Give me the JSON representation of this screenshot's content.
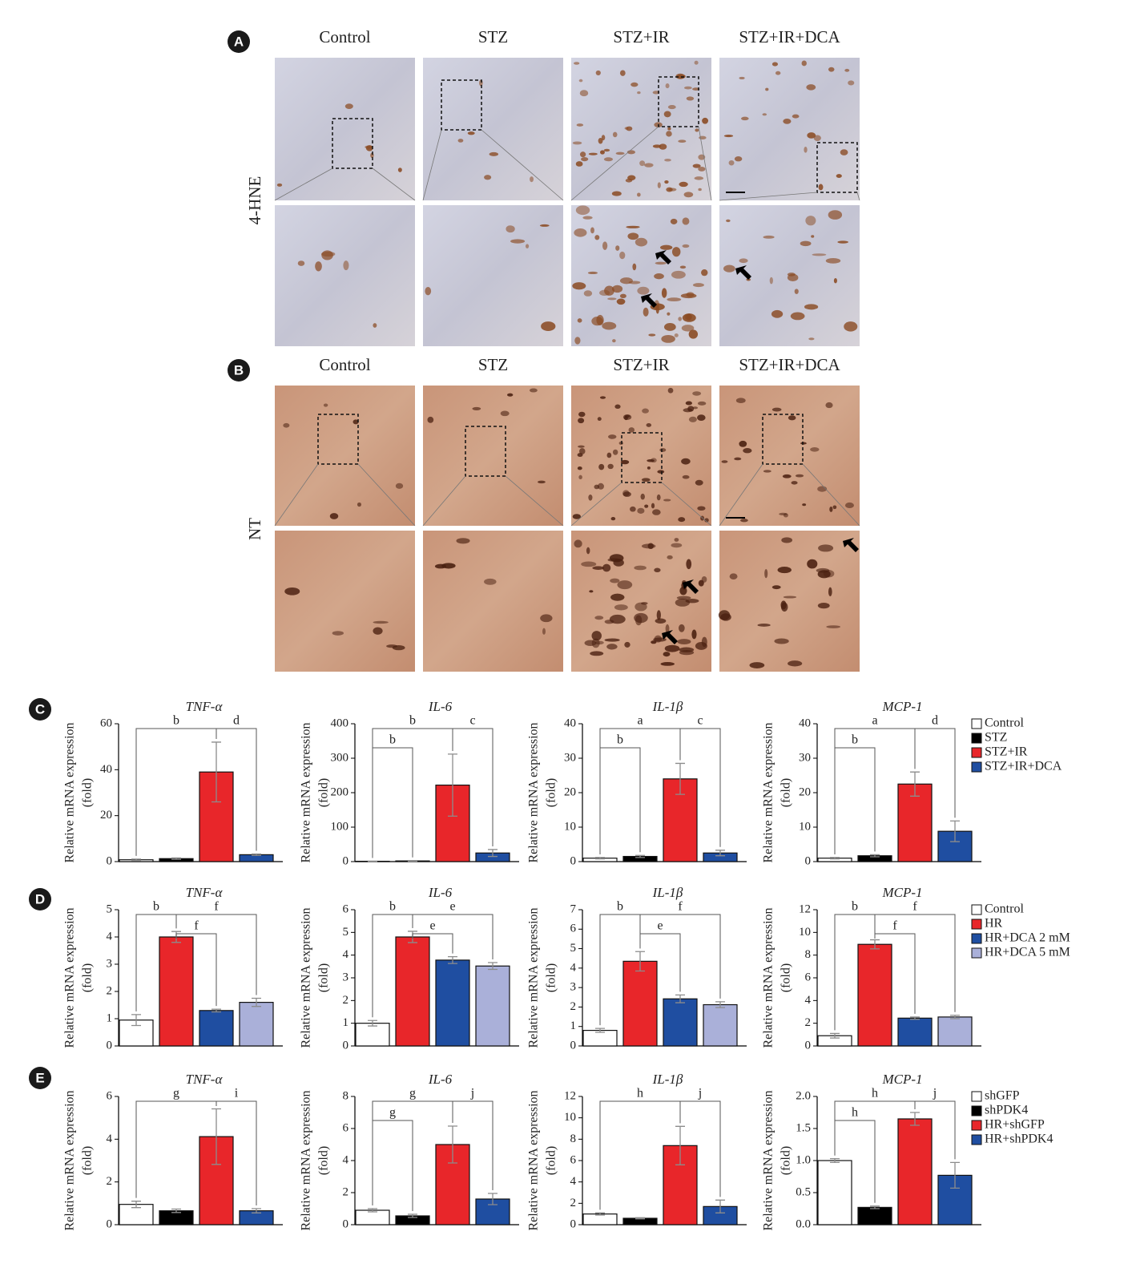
{
  "figure": {
    "panels": [
      {
        "letter": "A",
        "stain": "4-HNE",
        "columns": [
          "Control",
          "STZ",
          "STZ+IR",
          "STZ+IR+DCA"
        ]
      },
      {
        "letter": "B",
        "stain": "NT",
        "columns": [
          "Control",
          "STZ",
          "STZ+IR",
          "STZ+IR+DCA"
        ]
      },
      {
        "letter": "C"
      },
      {
        "letter": "D"
      },
      {
        "letter": "E"
      }
    ]
  },
  "chart_data": [
    {
      "type": "bar",
      "title": "TNF-α",
      "ylabel": [
        "Relative mRNA expression",
        "(fold)"
      ],
      "categories": [
        null,
        null,
        null,
        null
      ],
      "values": [
        0.8,
        1.3,
        39,
        3
      ],
      "errors": [
        0.3,
        0.3,
        13,
        0.3
      ],
      "colors": [
        "#ffffff",
        "#000000",
        "#e8262a",
        "#1f4ea1"
      ],
      "ylim": [
        0,
        60
      ],
      "yticks": [
        0,
        20,
        40,
        60
      ],
      "brackets": [
        {
          "label": "b",
          "from": 0,
          "to": 2
        },
        {
          "label": "d",
          "from": 2,
          "to": 3
        }
      ]
    },
    {
      "type": "bar",
      "title": "IL-6",
      "ylabel": [
        "Relative mRNA expression",
        "(fold)"
      ],
      "categories": [
        null,
        null,
        null,
        null
      ],
      "values": [
        1,
        2,
        222,
        25
      ],
      "errors": [
        0.5,
        1,
        90,
        10
      ],
      "colors": [
        "#ffffff",
        "#000000",
        "#e8262a",
        "#1f4ea1"
      ],
      "ylim": [
        0,
        400
      ],
      "yticks": [
        0,
        100,
        200,
        300,
        400
      ],
      "brackets": [
        {
          "label": "b",
          "from": 0,
          "to": 2
        },
        {
          "label": "b",
          "from": 0,
          "to": 1
        },
        {
          "label": "c",
          "from": 2,
          "to": 3
        }
      ]
    },
    {
      "type": "bar",
      "title": "IL-1β",
      "ylabel": [
        "Relative mRNA expression",
        "(fold)"
      ],
      "categories": [
        null,
        null,
        null,
        null
      ],
      "values": [
        1,
        1.5,
        24,
        2.5
      ],
      "errors": [
        0.2,
        0.3,
        4.5,
        0.8
      ],
      "colors": [
        "#ffffff",
        "#000000",
        "#e8262a",
        "#1f4ea1"
      ],
      "ylim": [
        0,
        40
      ],
      "yticks": [
        0,
        10,
        20,
        30,
        40
      ],
      "brackets": [
        {
          "label": "a",
          "from": 0,
          "to": 2
        },
        {
          "label": "b",
          "from": 0,
          "to": 1
        },
        {
          "label": "c",
          "from": 2,
          "to": 3
        }
      ]
    },
    {
      "type": "bar",
      "title": "MCP-1",
      "ylabel": [
        "Relative mRNA expression",
        "(fold)"
      ],
      "categories": [
        null,
        null,
        null,
        null
      ],
      "values": [
        1,
        1.7,
        22.5,
        8.8
      ],
      "errors": [
        0.2,
        0.3,
        3.5,
        3
      ],
      "colors": [
        "#ffffff",
        "#000000",
        "#e8262a",
        "#1f4ea1"
      ],
      "ylim": [
        0,
        40
      ],
      "yticks": [
        0,
        10,
        20,
        30,
        40
      ],
      "brackets": [
        {
          "label": "a",
          "from": 0,
          "to": 2
        },
        {
          "label": "b",
          "from": 0,
          "to": 1
        },
        {
          "label": "d",
          "from": 2,
          "to": 3
        }
      ],
      "legend": [
        {
          "name": "Control",
          "color": "#ffffff"
        },
        {
          "name": "STZ",
          "color": "#000000"
        },
        {
          "name": "STZ+IR",
          "color": "#e8262a"
        },
        {
          "name": "STZ+IR+DCA",
          "color": "#1f4ea1"
        }
      ]
    },
    {
      "type": "bar",
      "title": "TNF-α",
      "ylabel": [
        "Relative mRNA expression",
        "(fold)"
      ],
      "categories": [
        null,
        null,
        null,
        null
      ],
      "values": [
        0.95,
        4,
        1.3,
        1.6
      ],
      "errors": [
        0.2,
        0.2,
        0.05,
        0.15
      ],
      "colors": [
        "#ffffff",
        "#e8262a",
        "#1f4ea1",
        "#aab0d9"
      ],
      "ylim": [
        0,
        5
      ],
      "yticks": [
        0,
        1,
        2,
        3,
        4,
        5
      ],
      "brackets": [
        {
          "label": "b",
          "from": 0,
          "to": 1
        },
        {
          "label": "f",
          "from": 1,
          "to": 2
        },
        {
          "label": "f",
          "from": 1,
          "to": 3
        }
      ]
    },
    {
      "type": "bar",
      "title": "IL-6",
      "ylabel": [
        "Relative mRNA expression",
        "(fold)"
      ],
      "categories": [
        null,
        null,
        null,
        null
      ],
      "values": [
        1,
        4.8,
        3.78,
        3.52
      ],
      "errors": [
        0.12,
        0.25,
        0.15,
        0.15
      ],
      "colors": [
        "#ffffff",
        "#e8262a",
        "#1f4ea1",
        "#aab0d9"
      ],
      "ylim": [
        0,
        6
      ],
      "yticks": [
        0,
        1,
        2,
        3,
        4,
        5,
        6
      ],
      "brackets": [
        {
          "label": "b",
          "from": 0,
          "to": 1
        },
        {
          "label": "e",
          "from": 1,
          "to": 2
        },
        {
          "label": "e",
          "from": 1,
          "to": 3
        }
      ]
    },
    {
      "type": "bar",
      "title": "IL-1β",
      "ylabel": [
        "Relative mRNA expression",
        "(fold)"
      ],
      "categories": [
        null,
        null,
        null,
        null
      ],
      "values": [
        0.8,
        4.35,
        2.42,
        2.12
      ],
      "errors": [
        0.1,
        0.5,
        0.2,
        0.15
      ],
      "colors": [
        "#ffffff",
        "#e8262a",
        "#1f4ea1",
        "#aab0d9"
      ],
      "ylim": [
        0,
        7
      ],
      "yticks": [
        0,
        1,
        2,
        3,
        4,
        5,
        6,
        7
      ],
      "brackets": [
        {
          "label": "b",
          "from": 0,
          "to": 1
        },
        {
          "label": "e",
          "from": 1,
          "to": 2
        },
        {
          "label": "f",
          "from": 1,
          "to": 3
        }
      ]
    },
    {
      "type": "bar",
      "title": "MCP-1",
      "ylabel": [
        "Relative mRNA expression",
        "(fold)"
      ],
      "categories": [
        null,
        null,
        null,
        null
      ],
      "values": [
        0.9,
        8.95,
        2.45,
        2.55
      ],
      "errors": [
        0.2,
        0.4,
        0.1,
        0.15
      ],
      "colors": [
        "#ffffff",
        "#e8262a",
        "#1f4ea1",
        "#aab0d9"
      ],
      "ylim": [
        0,
        12
      ],
      "yticks": [
        0,
        2,
        4,
        6,
        8,
        10,
        12
      ],
      "brackets": [
        {
          "label": "b",
          "from": 0,
          "to": 1
        },
        {
          "label": "f",
          "from": 1,
          "to": 2
        },
        {
          "label": "f",
          "from": 1,
          "to": 3
        }
      ],
      "legend": [
        {
          "name": "Control",
          "color": "#ffffff"
        },
        {
          "name": "HR",
          "color": "#e8262a"
        },
        {
          "name": "HR+DCA 2 mM",
          "color": "#1f4ea1"
        },
        {
          "name": "HR+DCA 5 mM",
          "color": "#aab0d9"
        }
      ]
    },
    {
      "type": "bar",
      "title": "TNF-α",
      "ylabel": [
        "Relative mRNA expression",
        "(fold)"
      ],
      "categories": [
        null,
        null,
        null,
        null
      ],
      "values": [
        0.95,
        0.65,
        4.12,
        0.65
      ],
      "errors": [
        0.15,
        0.08,
        1.3,
        0.1
      ],
      "colors": [
        "#ffffff",
        "#000000",
        "#e8262a",
        "#1f4ea1"
      ],
      "ylim": [
        0,
        6
      ],
      "yticks": [
        0,
        2,
        4,
        6
      ],
      "brackets": [
        {
          "label": "g",
          "from": 0,
          "to": 2
        },
        {
          "label": "i",
          "from": 2,
          "to": 3
        }
      ]
    },
    {
      "type": "bar",
      "title": "IL-6",
      "ylabel": [
        "Relative mRNA expression",
        "(fold)"
      ],
      "categories": [
        null,
        null,
        null,
        null
      ],
      "values": [
        0.9,
        0.55,
        5,
        1.6
      ],
      "errors": [
        0.1,
        0.1,
        1.15,
        0.35
      ],
      "colors": [
        "#ffffff",
        "#000000",
        "#e8262a",
        "#1f4ea1"
      ],
      "ylim": [
        0,
        8
      ],
      "yticks": [
        0,
        2,
        4,
        6,
        8
      ],
      "brackets": [
        {
          "label": "g",
          "from": 0,
          "to": 2
        },
        {
          "label": "g",
          "from": 0,
          "to": 1
        },
        {
          "label": "j",
          "from": 2,
          "to": 3
        }
      ]
    },
    {
      "type": "bar",
      "title": "IL-1β",
      "ylabel": [
        "Relative mRNA expression",
        "(fold)"
      ],
      "categories": [
        null,
        null,
        null,
        null
      ],
      "values": [
        1,
        0.6,
        7.4,
        1.7
      ],
      "errors": [
        0.1,
        0.05,
        1.8,
        0.6
      ],
      "colors": [
        "#ffffff",
        "#000000",
        "#e8262a",
        "#1f4ea1"
      ],
      "ylim": [
        0,
        12
      ],
      "yticks": [
        0,
        2,
        4,
        6,
        8,
        10,
        12
      ],
      "brackets": [
        {
          "label": "h",
          "from": 0,
          "to": 2
        },
        {
          "label": "j",
          "from": 2,
          "to": 3
        }
      ]
    },
    {
      "type": "bar",
      "title": "MCP-1",
      "ylabel": [
        "Relative mRNA expression",
        "(fold)"
      ],
      "categories": [
        null,
        null,
        null,
        null
      ],
      "values": [
        1,
        0.27,
        1.65,
        0.77
      ],
      "errors": [
        0.03,
        0.02,
        0.1,
        0.2
      ],
      "colors": [
        "#ffffff",
        "#000000",
        "#e8262a",
        "#1f4ea1"
      ],
      "ylim": [
        0,
        2
      ],
      "yticks": [
        {
          "value": 0,
          "label": "0.0"
        },
        {
          "value": 0.5,
          "label": "0.5"
        },
        {
          "value": 1,
          "label": "1.0"
        },
        {
          "value": 1.5,
          "label": "1.5"
        },
        {
          "value": 2,
          "label": "2.0"
        }
      ],
      "brackets": [
        {
          "label": "h",
          "from": 0,
          "to": 1
        },
        {
          "label": "h",
          "from": 0,
          "to": 2
        },
        {
          "label": "j",
          "from": 2,
          "to": 3
        }
      ],
      "legend": [
        {
          "name": "shGFP",
          "color": "#ffffff"
        },
        {
          "name": "shPDK4",
          "color": "#000000"
        },
        {
          "name": "HR+shGFP",
          "color": "#e8262a"
        },
        {
          "name": "HR+shPDK4",
          "color": "#1f4ea1"
        }
      ]
    }
  ]
}
